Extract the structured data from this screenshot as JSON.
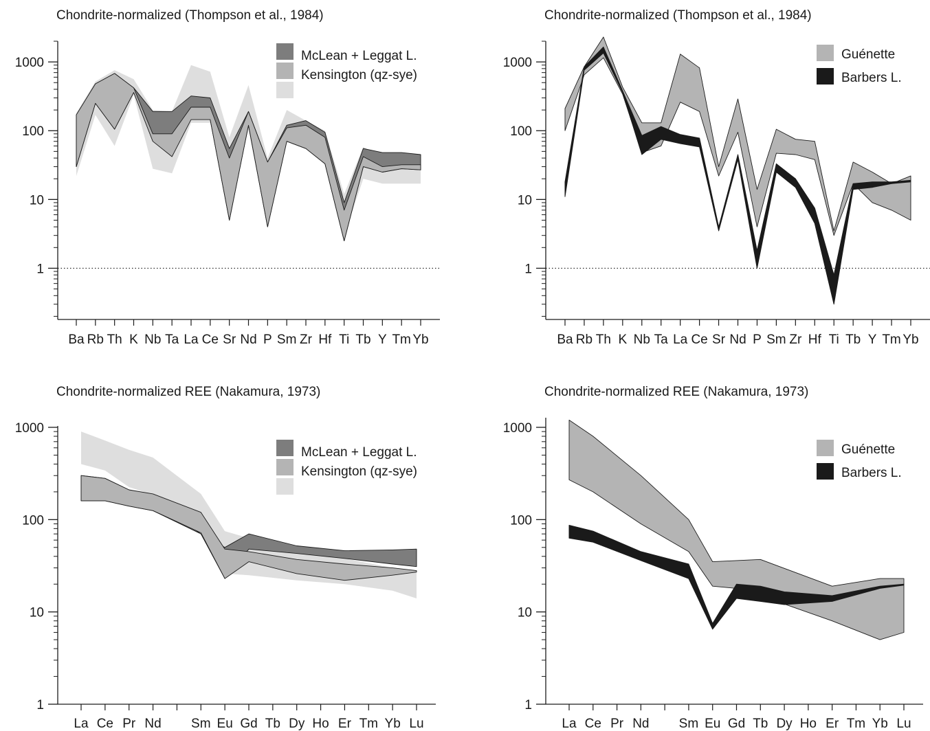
{
  "colors": {
    "dark_gray": "#7d7d7d",
    "mid_gray": "#b4b4b4",
    "light_gray": "#dedede",
    "black": "#1a1a1a",
    "axis": "#1a1a1a"
  },
  "chart_data": [
    {
      "type": "area",
      "title": "Chondrite-normalized (Thompson et al., 1984)",
      "xlabel": "",
      "ylabel": "",
      "yscale": "log",
      "ylim": [
        0.18,
        2000
      ],
      "yticks": [
        1,
        10,
        100,
        1000
      ],
      "ytick_labels": [
        "1",
        "10",
        "100",
        "1000"
      ],
      "reference_line": {
        "y": 1,
        "style": "dotted"
      },
      "categories": [
        "Ba",
        "Rb",
        "Th",
        "K",
        "Nb",
        "Ta",
        "La",
        "Ce",
        "Sr",
        "Nd",
        "P",
        "Sm",
        "Zr",
        "Hf",
        "Ti",
        "Tb",
        "Y",
        "Tm",
        "Yb"
      ],
      "legend_position": "top-right",
      "series": [
        {
          "name": "Kensington (qz-sye)",
          "color": "light_gray",
          "upper": [
            180,
            520,
            760,
            560,
            200,
            190,
            900,
            720,
            80,
            460,
            40,
            200,
            140,
            100,
            12,
            58,
            42,
            40,
            38
          ],
          "lower": [
            22,
            170,
            60,
            330,
            28,
            24,
            130,
            130,
            8,
            105,
            4,
            75,
            60,
            40,
            3,
            20,
            17,
            17,
            17
          ]
        },
        {
          "name": "McLean + Leggat L.",
          "color": "dark_gray",
          "upper": [
            170,
            480,
            680,
            420,
            190,
            190,
            320,
            300,
            55,
            190,
            35,
            120,
            140,
            95,
            9,
            55,
            48,
            48,
            45
          ],
          "lower": [
            30,
            250,
            105,
            360,
            80,
            85,
            145,
            145,
            5,
            120,
            4,
            70,
            55,
            33,
            2.5,
            30,
            25,
            28,
            27
          ]
        },
        {
          "name": "",
          "color": "mid_gray",
          "upper": [
            170,
            480,
            680,
            420,
            90,
            90,
            220,
            220,
            40,
            190,
            35,
            110,
            120,
            80,
            7,
            42,
            30,
            32,
            32
          ],
          "lower": [
            30,
            250,
            105,
            360,
            70,
            42,
            145,
            145,
            5,
            120,
            4,
            70,
            55,
            33,
            2.5,
            30,
            25,
            28,
            27
          ]
        }
      ]
    },
    {
      "type": "area",
      "title": "Chondrite-normalized (Thompson et al., 1984)",
      "xlabel": "",
      "ylabel": "",
      "yscale": "log",
      "ylim": [
        0.18,
        2000
      ],
      "yticks": [
        1,
        10,
        100,
        1000
      ],
      "ytick_labels": [
        "1",
        "10",
        "100",
        "1000"
      ],
      "reference_line": {
        "y": 1,
        "style": "dotted"
      },
      "categories": [
        "Ba",
        "Rb",
        "Th",
        "K",
        "Nb",
        "Ta",
        "La",
        "Ce",
        "Sr",
        "Nd",
        "P",
        "Sm",
        "Zr",
        "Hf",
        "Ti",
        "Tb",
        "Y",
        "Tm",
        "Yb"
      ],
      "legend_position": "top-right",
      "series": [
        {
          "name": "Guénette",
          "color": "mid_gray",
          "upper": [
            210,
            850,
            2300,
            430,
            130,
            130,
            1300,
            820,
            30,
            290,
            14,
            105,
            75,
            70,
            3.5,
            35,
            25,
            17,
            22
          ],
          "lower": [
            100,
            650,
            1150,
            340,
            48,
            60,
            260,
            190,
            22,
            95,
            4,
            47,
            45,
            38,
            3,
            17,
            9,
            7,
            5
          ]
        },
        {
          "name": "Barbers L.",
          "color": "black",
          "upper": [
            18,
            850,
            1650,
            380,
            85,
            115,
            88,
            78,
            4,
            45,
            1.8,
            33,
            20,
            7.5,
            0.8,
            17,
            18,
            18,
            19
          ],
          "lower": [
            11,
            760,
            1350,
            360,
            45,
            75,
            65,
            58,
            3.5,
            38,
            1.0,
            25,
            15,
            4.5,
            0.3,
            14,
            15,
            17,
            18
          ]
        }
      ]
    },
    {
      "type": "area",
      "title": "Chondrite-normalized REE (Nakamura, 1973)",
      "xlabel": "",
      "ylabel": "",
      "yscale": "log",
      "ylim": [
        1,
        1000
      ],
      "yticks": [
        1,
        10,
        100,
        1000
      ],
      "ytick_labels": [
        "1",
        "10",
        "100",
        "1000"
      ],
      "categories": [
        "La",
        "Ce",
        "Pr",
        "Nd",
        "",
        "Sm",
        "Eu",
        "Gd",
        "Tb",
        "Dy",
        "Ho",
        "Er",
        "Tm",
        "Yb",
        "Lu"
      ],
      "legend_position": "top-right",
      "series": [
        {
          "name": "Kensington (qz-sye)",
          "color": "light_gray",
          "upper": [
            900,
            720,
            570,
            470,
            null,
            190,
            75,
            63,
            null,
            45,
            null,
            38,
            null,
            30,
            27
          ],
          "lower": [
            400,
            340,
            225,
            185,
            null,
            115,
            26,
            25,
            null,
            22,
            null,
            20,
            null,
            17,
            14
          ]
        },
        {
          "name": "McLean + Leggat L.",
          "color": "dark_gray",
          "upper": [
            300,
            280,
            210,
            160,
            null,
            70,
            50,
            70,
            null,
            52,
            null,
            46,
            null,
            47,
            48
          ],
          "lower": [
            160,
            160,
            140,
            125,
            null,
            70,
            23,
            48,
            null,
            43,
            null,
            38,
            null,
            33,
            31
          ]
        },
        {
          "name": "",
          "color": "mid_gray",
          "upper": [
            300,
            280,
            210,
            190,
            null,
            120,
            48,
            45,
            null,
            37,
            null,
            33,
            null,
            30,
            28
          ],
          "lower": [
            160,
            160,
            140,
            125,
            null,
            72,
            23,
            35,
            null,
            26,
            null,
            22,
            null,
            25,
            27
          ]
        }
      ]
    },
    {
      "type": "area",
      "title": "Chondrite-normalized REE (Nakamura, 1973)",
      "xlabel": "",
      "ylabel": "",
      "yscale": "log",
      "ylim": [
        1,
        1000
      ],
      "yticks": [
        1,
        10,
        100,
        1000
      ],
      "ytick_labels": [
        "1",
        "10",
        "100",
        "1000"
      ],
      "categories": [
        "La",
        "Ce",
        "Pr",
        "Nd",
        "",
        "Sm",
        "Eu",
        "Gd",
        "Tb",
        "Dy",
        "Ho",
        "Er",
        "Tm",
        "Yb",
        "Lu"
      ],
      "legend_position": "top-right",
      "series": [
        {
          "name": "Guénette",
          "color": "mid_gray",
          "upper": [
            1200,
            800,
            null,
            300,
            null,
            100,
            35,
            36,
            37,
            null,
            null,
            19,
            null,
            23,
            23
          ],
          "lower": [
            270,
            200,
            null,
            90,
            null,
            45,
            19,
            18,
            15,
            null,
            null,
            8,
            null,
            5,
            6
          ]
        },
        {
          "name": "Barbers L.",
          "color": "black",
          "upper": [
            87,
            75,
            null,
            45,
            null,
            33,
            7.5,
            20,
            19,
            16.5,
            null,
            15,
            null,
            19,
            20
          ],
          "lower": [
            63,
            57,
            null,
            36,
            null,
            23,
            6.5,
            14,
            13,
            12,
            null,
            13,
            null,
            18,
            19.5
          ]
        }
      ]
    }
  ]
}
